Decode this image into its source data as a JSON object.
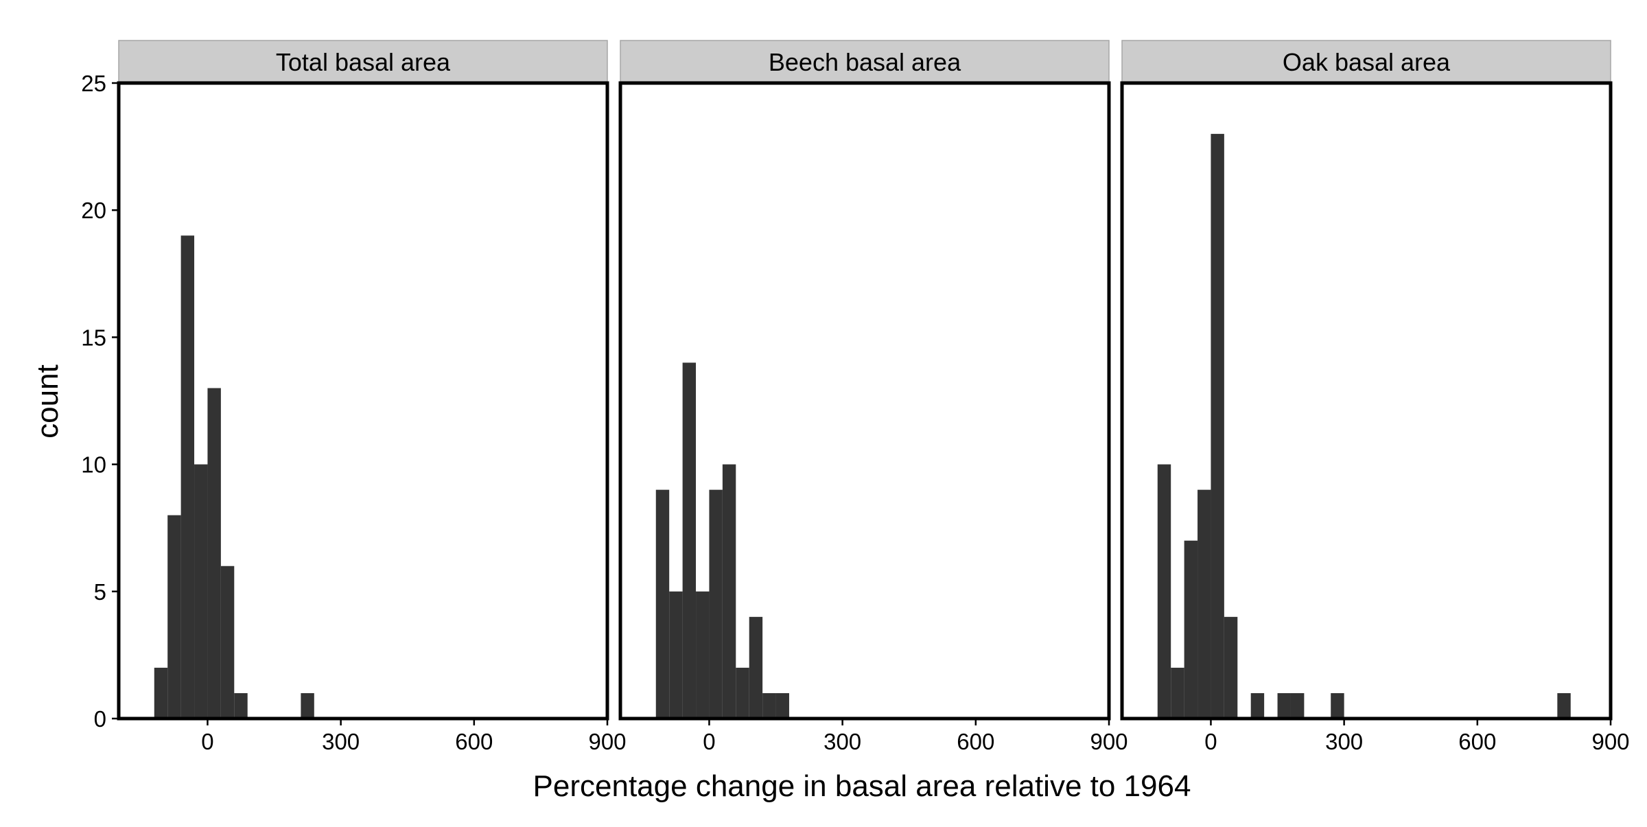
{
  "chart_data": {
    "type": "bar",
    "chart_kind": "faceted histogram",
    "xlabel": "Percentage change in basal area relative to 1964",
    "ylabel": "count",
    "ylim": [
      0,
      25
    ],
    "y_ticks": [
      "0",
      "5",
      "10",
      "15",
      "20",
      "25"
    ],
    "xlim": [
      -200,
      900
    ],
    "x_ticks": [
      "0",
      "300",
      "600",
      "900"
    ],
    "bin_width": 30,
    "grid": false,
    "bar_color": "#333333",
    "strip_color": "#cccccc",
    "panels": [
      {
        "title": "Total basal area",
        "bins": [
          {
            "start": -120,
            "count": 2
          },
          {
            "start": -90,
            "count": 8
          },
          {
            "start": -60,
            "count": 19
          },
          {
            "start": -30,
            "count": 10
          },
          {
            "start": 0,
            "count": 13
          },
          {
            "start": 30,
            "count": 6
          },
          {
            "start": 60,
            "count": 1
          },
          {
            "start": 210,
            "count": 1
          }
        ]
      },
      {
        "title": "Beech basal area",
        "bins": [
          {
            "start": -120,
            "count": 9
          },
          {
            "start": -90,
            "count": 5
          },
          {
            "start": -60,
            "count": 14
          },
          {
            "start": -30,
            "count": 5
          },
          {
            "start": 0,
            "count": 9
          },
          {
            "start": 30,
            "count": 10
          },
          {
            "start": 60,
            "count": 2
          },
          {
            "start": 90,
            "count": 4
          },
          {
            "start": 120,
            "count": 1
          },
          {
            "start": 150,
            "count": 1
          }
        ]
      },
      {
        "title": "Oak basal area",
        "bins": [
          {
            "start": -120,
            "count": 10
          },
          {
            "start": -90,
            "count": 2
          },
          {
            "start": -60,
            "count": 7
          },
          {
            "start": -30,
            "count": 9
          },
          {
            "start": 0,
            "count": 23
          },
          {
            "start": 30,
            "count": 4
          },
          {
            "start": 90,
            "count": 1
          },
          {
            "start": 150,
            "count": 1
          },
          {
            "start": 180,
            "count": 1
          },
          {
            "start": 270,
            "count": 1
          },
          {
            "start": 780,
            "count": 1
          }
        ]
      }
    ]
  }
}
